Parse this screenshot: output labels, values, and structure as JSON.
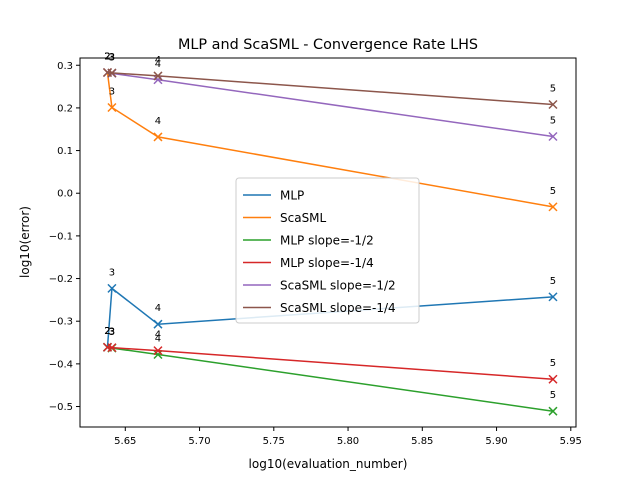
{
  "chart_data": {
    "type": "line",
    "title": "MLP and ScaSML - Convergence Rate LHS",
    "xlabel": "log10(evaluation_number)",
    "ylabel": "log10(error)",
    "xlim": [
      5.6195,
      5.9535
    ],
    "ylim": [
      -0.548,
      0.317
    ],
    "xticks": [
      5.65,
      5.7,
      5.75,
      5.8,
      5.85,
      5.9,
      5.95
    ],
    "xtick_labels": [
      "5.65",
      "5.70",
      "5.75",
      "5.80",
      "5.85",
      "5.90",
      "5.95"
    ],
    "yticks": [
      -0.5,
      -0.4,
      -0.3,
      -0.2,
      -0.1,
      0.0,
      0.1,
      0.2,
      0.3
    ],
    "ytick_labels": [
      "−0.5",
      "−0.4",
      "−0.3",
      "−0.2",
      "−0.1",
      "0.0",
      "0.1",
      "0.2",
      "0.3"
    ],
    "legend_position": "center",
    "grid": false,
    "series": [
      {
        "name": "MLP",
        "color": "#1f77b4",
        "x": [
          5.638,
          5.641,
          5.672,
          5.938
        ],
        "y": [
          -0.361,
          -0.223,
          -0.307,
          -0.243
        ],
        "labels": [
          "2",
          "3",
          "4",
          "5"
        ]
      },
      {
        "name": "ScaSML",
        "color": "#ff7f0e",
        "x": [
          5.638,
          5.641,
          5.672,
          5.938
        ],
        "y": [
          0.283,
          0.201,
          0.132,
          -0.032
        ],
        "labels": [
          "2",
          "3",
          "4",
          "5"
        ]
      },
      {
        "name": "MLP slope=-1/2",
        "color": "#2ca02c",
        "x": [
          5.638,
          5.641,
          5.672,
          5.938
        ],
        "y": [
          -0.361,
          -0.363,
          -0.378,
          -0.511
        ],
        "labels": [
          "2",
          "3",
          "4",
          "5"
        ]
      },
      {
        "name": "MLP slope=-1/4",
        "color": "#d62728",
        "x": [
          5.638,
          5.641,
          5.672,
          5.938
        ],
        "y": [
          -0.361,
          -0.362,
          -0.369,
          -0.436
        ],
        "labels": [
          "2",
          "3",
          "4",
          "5"
        ]
      },
      {
        "name": "ScaSML slope=-1/2",
        "color": "#9467bd",
        "x": [
          5.638,
          5.641,
          5.672,
          5.938
        ],
        "y": [
          0.283,
          0.281,
          0.266,
          0.133
        ],
        "labels": [
          "2",
          "3",
          "4",
          "5"
        ]
      },
      {
        "name": "ScaSML slope=-1/4",
        "color": "#8c564b",
        "x": [
          5.638,
          5.641,
          5.672,
          5.938
        ],
        "y": [
          0.283,
          0.282,
          0.275,
          0.208
        ],
        "labels": [
          "2",
          "3",
          "4",
          "5"
        ]
      }
    ]
  }
}
